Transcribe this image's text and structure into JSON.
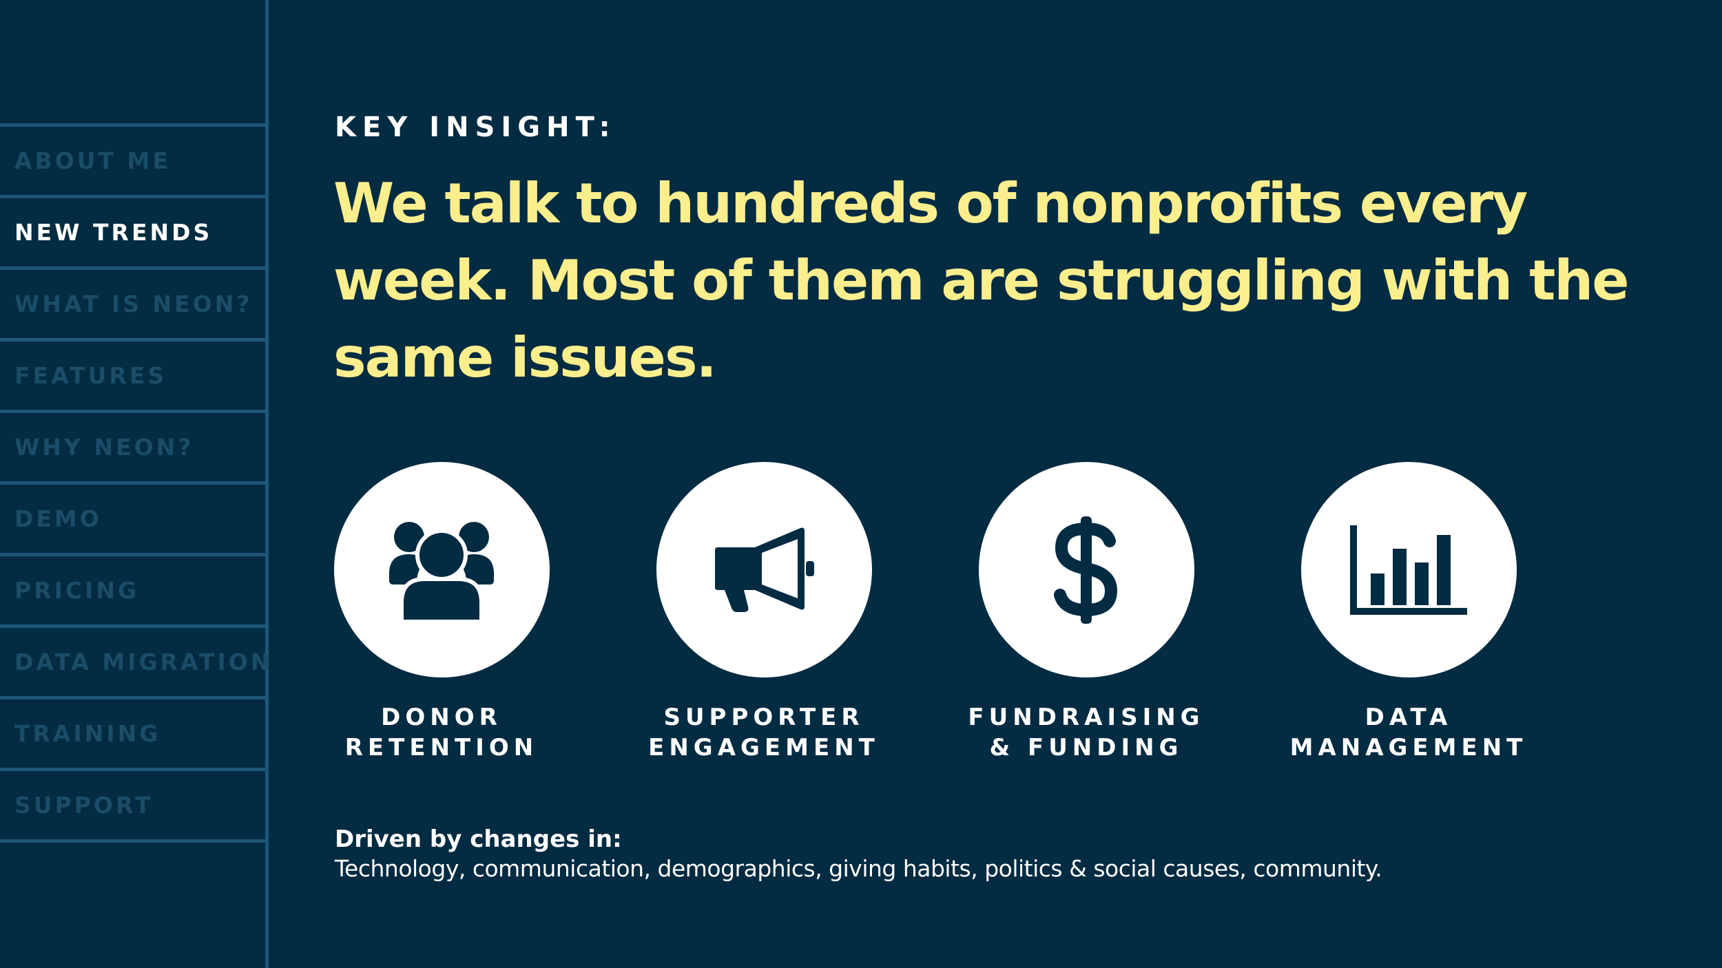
{
  "sidebar": {
    "items": [
      {
        "label": "ABOUT ME",
        "active": false
      },
      {
        "label": "NEW TRENDS",
        "active": true
      },
      {
        "label": "WHAT IS NEON?",
        "active": false
      },
      {
        "label": "FEATURES",
        "active": false
      },
      {
        "label": "WHY NEON?",
        "active": false
      },
      {
        "label": "DEMO",
        "active": false
      },
      {
        "label": "PRICING",
        "active": false
      },
      {
        "label": "DATA MIGRATION",
        "active": false
      },
      {
        "label": "TRAINING",
        "active": false
      },
      {
        "label": "SUPPORT",
        "active": false
      }
    ]
  },
  "main": {
    "eyebrow": "KEY INSIGHT:",
    "headline": "We talk to hundreds of nonprofits every week. Most of them are struggling with the same issues.",
    "cards": [
      {
        "icon": "people-group-icon",
        "line1": "DONOR",
        "line2": "RETENTION"
      },
      {
        "icon": "megaphone-icon",
        "line1": "SUPPORTER",
        "line2": "ENGAGEMENT"
      },
      {
        "icon": "dollar-sign-icon",
        "line1": "FUNDRAISING",
        "line2": "& FUNDING"
      },
      {
        "icon": "bar-chart-icon",
        "line1": "DATA",
        "line2": "MANAGEMENT"
      }
    ],
    "driven_title": "Driven by changes in:",
    "driven_text": "Technology, communication, demographics, giving habits, politics & social causes, community."
  },
  "colors": {
    "background": "#032b41",
    "sidebar_line": "#1d5778",
    "nav_inactive": "#1b4c68",
    "nav_active": "#ffffff",
    "headline": "#fbee8d",
    "icon": "#032b41"
  }
}
